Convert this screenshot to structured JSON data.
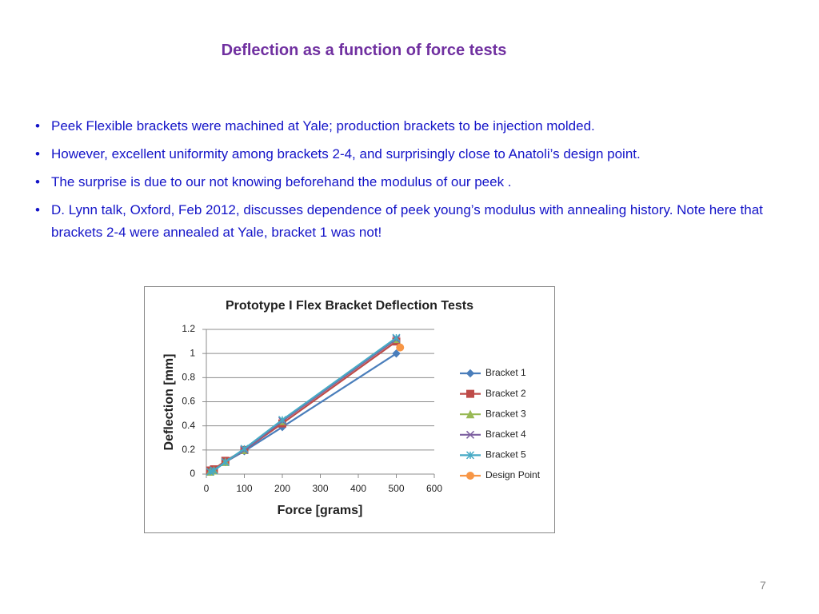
{
  "title": "Deflection as a function of force tests",
  "bullets": [
    "Peek Flexible brackets were machined at Yale; production brackets to be injection molded.",
    "However, excellent uniformity among brackets 2-4, and surprisingly close to Anatoli’s design point.",
    "The surprise is due to our not knowing beforehand the modulus of our peek .",
    "D. Lynn talk, Oxford, Feb 2012, discusses dependence of peek young’s modulus with annealing history. Note here that brackets 2-4 were annealed at Yale, bracket 1 was not!"
  ],
  "page_number": "7",
  "chart_data": {
    "type": "line",
    "title": "Prototype I Flex Bracket Deflection Tests",
    "x_label": "Force [grams]",
    "y_label": "Deflection [mm]",
    "xlim": [
      0,
      600
    ],
    "xticks": [
      0,
      100,
      200,
      300,
      400,
      500,
      600
    ],
    "ylim": [
      0,
      1.2
    ],
    "yticks": [
      0,
      0.2,
      0.4,
      0.6,
      0.8,
      1,
      1.2
    ],
    "grid": true,
    "legend": "right",
    "series": [
      {
        "name": "Bracket 1",
        "color": "#4a7ebb",
        "marker": "diamond",
        "x": [
          10,
          20,
          50,
          100,
          200,
          500
        ],
        "values": [
          0.02,
          0.03,
          0.1,
          0.19,
          0.39,
          1.0
        ]
      },
      {
        "name": "Bracket 2",
        "color": "#be4b48",
        "marker": "square",
        "x": [
          10,
          20,
          50,
          100,
          200,
          500
        ],
        "values": [
          0.03,
          0.04,
          0.11,
          0.2,
          0.42,
          1.1
        ]
      },
      {
        "name": "Bracket 3",
        "color": "#98b954",
        "marker": "triangle",
        "x": [
          10,
          20,
          50,
          100,
          200,
          500
        ],
        "values": [
          0.02,
          0.03,
          0.1,
          0.2,
          0.44,
          1.12
        ]
      },
      {
        "name": "Bracket 4",
        "color": "#7d60a0",
        "marker": "x",
        "x": [
          10,
          20,
          50,
          100,
          200,
          500
        ],
        "values": [
          0.02,
          0.03,
          0.1,
          0.2,
          0.44,
          1.12
        ]
      },
      {
        "name": "Bracket 5",
        "color": "#46aac5",
        "marker": "star",
        "x": [
          10,
          20,
          50,
          100,
          200,
          500
        ],
        "values": [
          0.02,
          0.03,
          0.1,
          0.21,
          0.45,
          1.13
        ]
      },
      {
        "name": "Design Point",
        "color": "#f79646",
        "marker": "circle",
        "x": [
          510
        ],
        "values": [
          1.05
        ]
      }
    ]
  }
}
